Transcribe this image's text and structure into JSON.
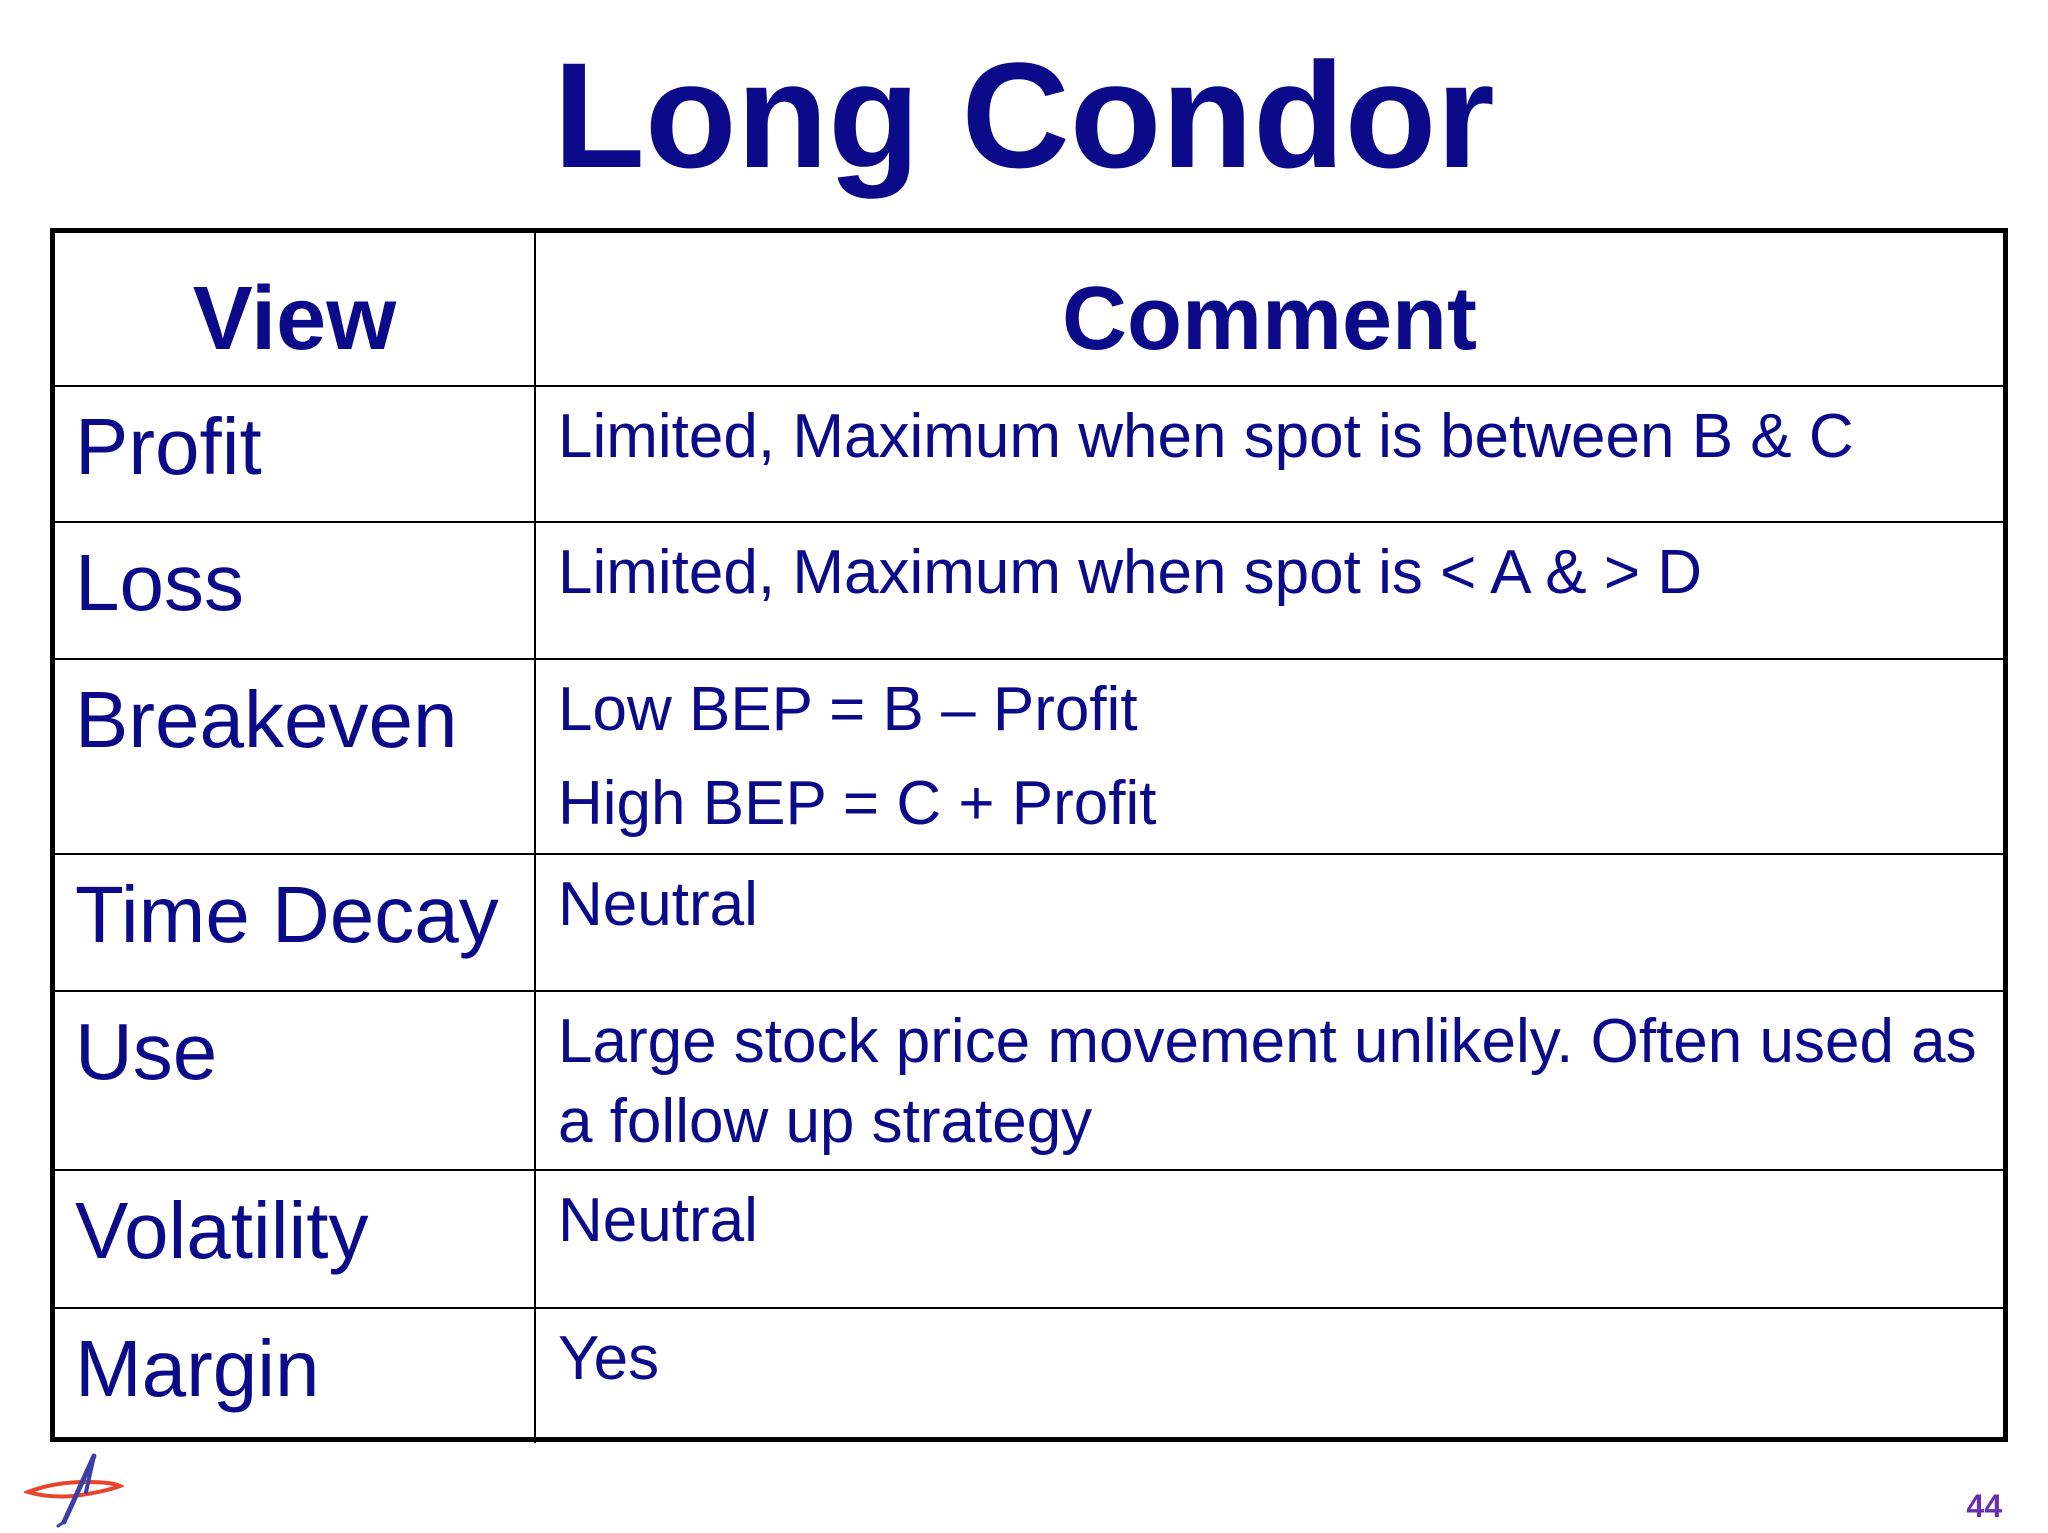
{
  "slide": {
    "title": "Long Condor",
    "page_number": "44",
    "logo_icon": "company-logo-icon"
  },
  "table": {
    "headers": [
      "View",
      "Comment"
    ],
    "rows": [
      {
        "view": "Profit",
        "comment": [
          "Limited, Maximum when spot is between B & C"
        ]
      },
      {
        "view": "Loss",
        "comment": [
          "Limited, Maximum when spot is < A & > D"
        ]
      },
      {
        "view": "Breakeven",
        "comment": [
          "Low BEP = B – Profit",
          "High BEP = C + Profit"
        ]
      },
      {
        "view": "Time Decay",
        "comment": [
          "Neutral"
        ]
      },
      {
        "view": "Use",
        "comment": [
          "Large stock price movement unlikely. Often used as a follow up strategy"
        ]
      },
      {
        "view": "Volatility",
        "comment": [
          "Neutral"
        ]
      },
      {
        "view": "Margin",
        "comment": [
          "Yes"
        ]
      }
    ]
  },
  "colors": {
    "text": "#0b0b8a",
    "border": "#000000",
    "page_number": "#6a2fb0",
    "logo_red": "#e8452c",
    "logo_blue": "#3b3fa8"
  }
}
